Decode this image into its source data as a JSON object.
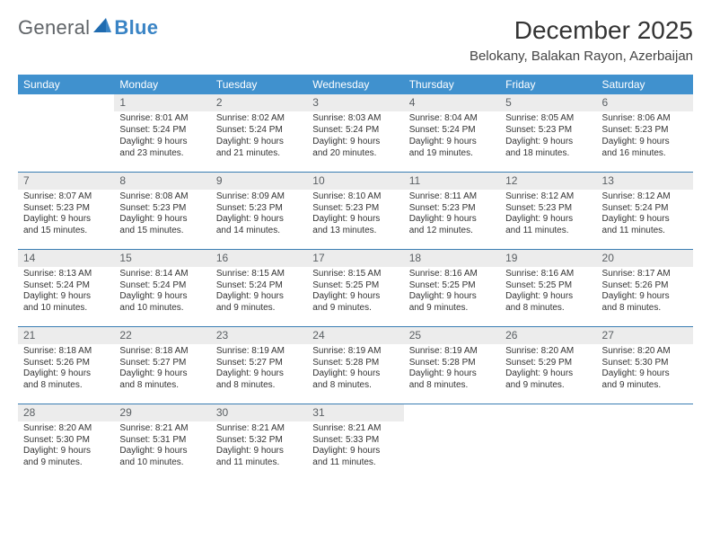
{
  "logo": {
    "general": "General",
    "blue": "Blue"
  },
  "title": "December 2025",
  "location": "Belokany, Balakan Rayon, Azerbaijan",
  "colors": {
    "header_bg": "#4091ce",
    "header_text": "#ffffff",
    "rule": "#3a7db3",
    "daybar_bg": "#ececec",
    "logo_blue": "#3a84c5"
  },
  "weekdays": [
    "Sunday",
    "Monday",
    "Tuesday",
    "Wednesday",
    "Thursday",
    "Friday",
    "Saturday"
  ],
  "weeks": [
    [
      {
        "blank": true
      },
      {
        "n": "1",
        "sr": "Sunrise: 8:01 AM",
        "ss": "Sunset: 5:24 PM",
        "d1": "Daylight: 9 hours",
        "d2": "and 23 minutes."
      },
      {
        "n": "2",
        "sr": "Sunrise: 8:02 AM",
        "ss": "Sunset: 5:24 PM",
        "d1": "Daylight: 9 hours",
        "d2": "and 21 minutes."
      },
      {
        "n": "3",
        "sr": "Sunrise: 8:03 AM",
        "ss": "Sunset: 5:24 PM",
        "d1": "Daylight: 9 hours",
        "d2": "and 20 minutes."
      },
      {
        "n": "4",
        "sr": "Sunrise: 8:04 AM",
        "ss": "Sunset: 5:24 PM",
        "d1": "Daylight: 9 hours",
        "d2": "and 19 minutes."
      },
      {
        "n": "5",
        "sr": "Sunrise: 8:05 AM",
        "ss": "Sunset: 5:23 PM",
        "d1": "Daylight: 9 hours",
        "d2": "and 18 minutes."
      },
      {
        "n": "6",
        "sr": "Sunrise: 8:06 AM",
        "ss": "Sunset: 5:23 PM",
        "d1": "Daylight: 9 hours",
        "d2": "and 16 minutes."
      }
    ],
    [
      {
        "n": "7",
        "sr": "Sunrise: 8:07 AM",
        "ss": "Sunset: 5:23 PM",
        "d1": "Daylight: 9 hours",
        "d2": "and 15 minutes."
      },
      {
        "n": "8",
        "sr": "Sunrise: 8:08 AM",
        "ss": "Sunset: 5:23 PM",
        "d1": "Daylight: 9 hours",
        "d2": "and 15 minutes."
      },
      {
        "n": "9",
        "sr": "Sunrise: 8:09 AM",
        "ss": "Sunset: 5:23 PM",
        "d1": "Daylight: 9 hours",
        "d2": "and 14 minutes."
      },
      {
        "n": "10",
        "sr": "Sunrise: 8:10 AM",
        "ss": "Sunset: 5:23 PM",
        "d1": "Daylight: 9 hours",
        "d2": "and 13 minutes."
      },
      {
        "n": "11",
        "sr": "Sunrise: 8:11 AM",
        "ss": "Sunset: 5:23 PM",
        "d1": "Daylight: 9 hours",
        "d2": "and 12 minutes."
      },
      {
        "n": "12",
        "sr": "Sunrise: 8:12 AM",
        "ss": "Sunset: 5:23 PM",
        "d1": "Daylight: 9 hours",
        "d2": "and 11 minutes."
      },
      {
        "n": "13",
        "sr": "Sunrise: 8:12 AM",
        "ss": "Sunset: 5:24 PM",
        "d1": "Daylight: 9 hours",
        "d2": "and 11 minutes."
      }
    ],
    [
      {
        "n": "14",
        "sr": "Sunrise: 8:13 AM",
        "ss": "Sunset: 5:24 PM",
        "d1": "Daylight: 9 hours",
        "d2": "and 10 minutes."
      },
      {
        "n": "15",
        "sr": "Sunrise: 8:14 AM",
        "ss": "Sunset: 5:24 PM",
        "d1": "Daylight: 9 hours",
        "d2": "and 10 minutes."
      },
      {
        "n": "16",
        "sr": "Sunrise: 8:15 AM",
        "ss": "Sunset: 5:24 PM",
        "d1": "Daylight: 9 hours",
        "d2": "and 9 minutes."
      },
      {
        "n": "17",
        "sr": "Sunrise: 8:15 AM",
        "ss": "Sunset: 5:25 PM",
        "d1": "Daylight: 9 hours",
        "d2": "and 9 minutes."
      },
      {
        "n": "18",
        "sr": "Sunrise: 8:16 AM",
        "ss": "Sunset: 5:25 PM",
        "d1": "Daylight: 9 hours",
        "d2": "and 9 minutes."
      },
      {
        "n": "19",
        "sr": "Sunrise: 8:16 AM",
        "ss": "Sunset: 5:25 PM",
        "d1": "Daylight: 9 hours",
        "d2": "and 8 minutes."
      },
      {
        "n": "20",
        "sr": "Sunrise: 8:17 AM",
        "ss": "Sunset: 5:26 PM",
        "d1": "Daylight: 9 hours",
        "d2": "and 8 minutes."
      }
    ],
    [
      {
        "n": "21",
        "sr": "Sunrise: 8:18 AM",
        "ss": "Sunset: 5:26 PM",
        "d1": "Daylight: 9 hours",
        "d2": "and 8 minutes."
      },
      {
        "n": "22",
        "sr": "Sunrise: 8:18 AM",
        "ss": "Sunset: 5:27 PM",
        "d1": "Daylight: 9 hours",
        "d2": "and 8 minutes."
      },
      {
        "n": "23",
        "sr": "Sunrise: 8:19 AM",
        "ss": "Sunset: 5:27 PM",
        "d1": "Daylight: 9 hours",
        "d2": "and 8 minutes."
      },
      {
        "n": "24",
        "sr": "Sunrise: 8:19 AM",
        "ss": "Sunset: 5:28 PM",
        "d1": "Daylight: 9 hours",
        "d2": "and 8 minutes."
      },
      {
        "n": "25",
        "sr": "Sunrise: 8:19 AM",
        "ss": "Sunset: 5:28 PM",
        "d1": "Daylight: 9 hours",
        "d2": "and 8 minutes."
      },
      {
        "n": "26",
        "sr": "Sunrise: 8:20 AM",
        "ss": "Sunset: 5:29 PM",
        "d1": "Daylight: 9 hours",
        "d2": "and 9 minutes."
      },
      {
        "n": "27",
        "sr": "Sunrise: 8:20 AM",
        "ss": "Sunset: 5:30 PM",
        "d1": "Daylight: 9 hours",
        "d2": "and 9 minutes."
      }
    ],
    [
      {
        "n": "28",
        "sr": "Sunrise: 8:20 AM",
        "ss": "Sunset: 5:30 PM",
        "d1": "Daylight: 9 hours",
        "d2": "and 9 minutes."
      },
      {
        "n": "29",
        "sr": "Sunrise: 8:21 AM",
        "ss": "Sunset: 5:31 PM",
        "d1": "Daylight: 9 hours",
        "d2": "and 10 minutes."
      },
      {
        "n": "30",
        "sr": "Sunrise: 8:21 AM",
        "ss": "Sunset: 5:32 PM",
        "d1": "Daylight: 9 hours",
        "d2": "and 11 minutes."
      },
      {
        "n": "31",
        "sr": "Sunrise: 8:21 AM",
        "ss": "Sunset: 5:33 PM",
        "d1": "Daylight: 9 hours",
        "d2": "and 11 minutes."
      },
      {
        "blank": true
      },
      {
        "blank": true
      },
      {
        "blank": true
      }
    ]
  ]
}
